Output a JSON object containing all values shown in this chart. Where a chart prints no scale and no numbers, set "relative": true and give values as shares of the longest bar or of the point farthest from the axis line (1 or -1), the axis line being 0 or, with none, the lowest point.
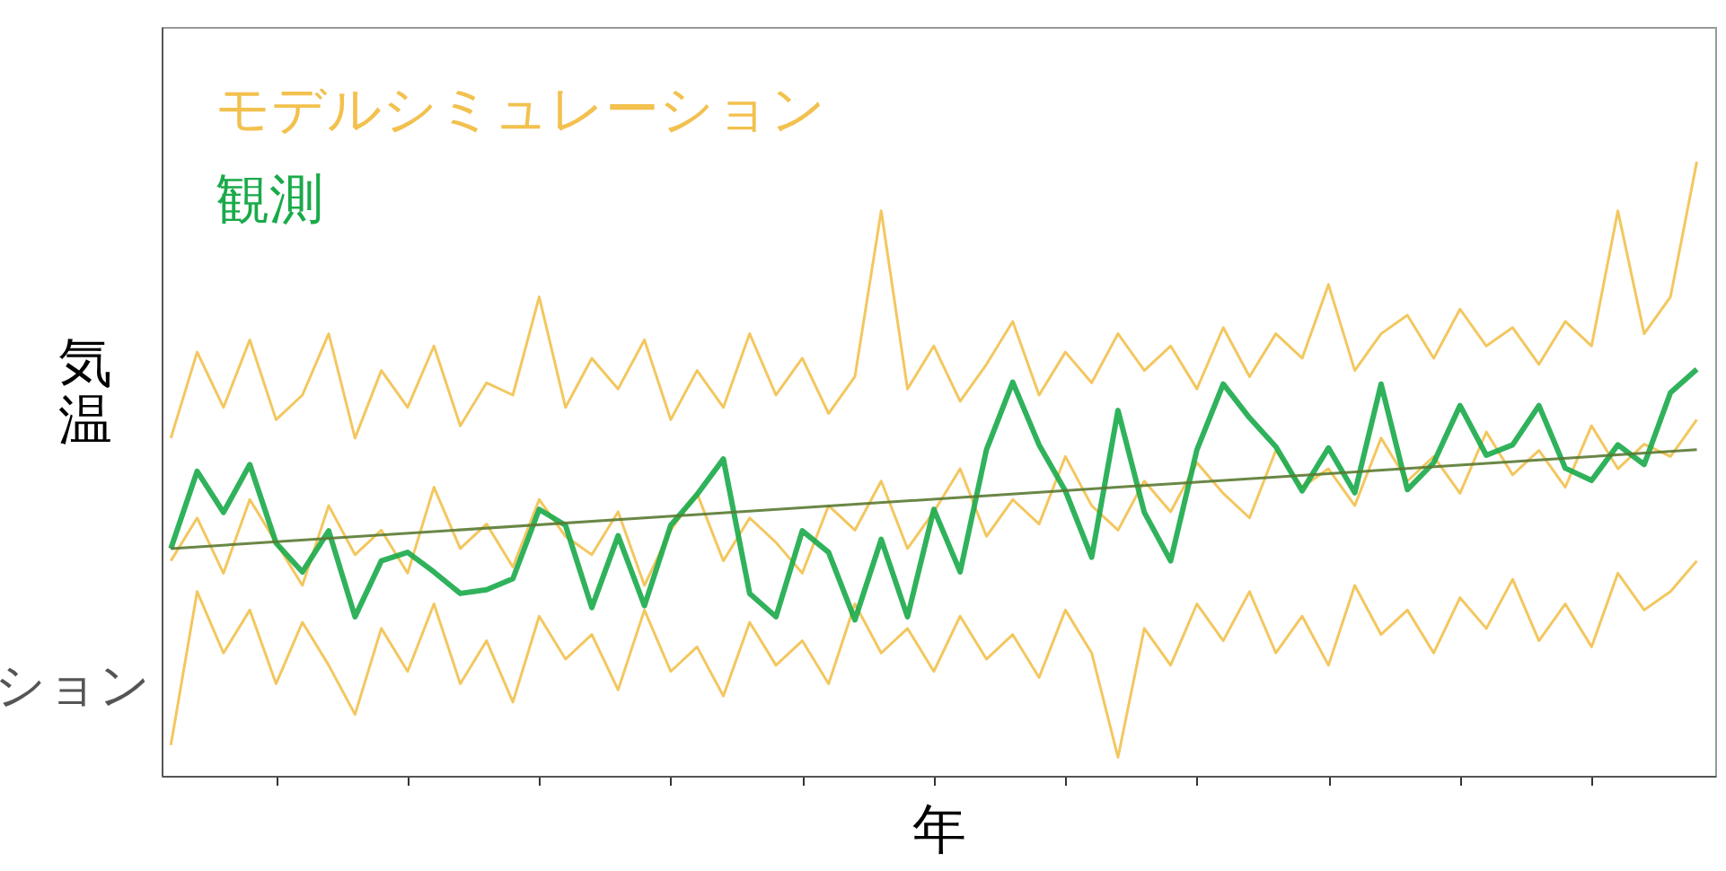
{
  "chart_data": {
    "type": "line",
    "relative": true,
    "xlabel": "年",
    "ylabel": "気温",
    "legend": "top left",
    "annotations": [
      "ション"
    ],
    "categories": [
      null,
      null,
      null,
      null,
      null,
      null,
      null,
      null,
      null,
      null,
      null,
      null,
      null,
      null,
      null,
      null,
      null,
      null,
      null,
      null,
      null,
      null,
      null,
      null,
      null,
      null,
      null,
      null,
      null,
      null,
      null,
      null,
      null,
      null,
      null,
      null,
      null,
      null,
      null,
      null,
      null,
      null,
      null,
      null,
      null,
      null,
      null,
      null,
      null,
      null,
      null,
      null,
      null,
      null,
      null,
      null,
      null,
      null,
      null
    ],
    "series": [
      {
        "name": "モデルシミュレーション",
        "color": "#f2c14e",
        "values": [
          0.55,
          0.69,
          0.6,
          0.71,
          0.58,
          0.62,
          0.72,
          0.55,
          0.66,
          0.6,
          0.7,
          0.57,
          0.64,
          0.62,
          0.78,
          0.6,
          0.68,
          0.63,
          0.71,
          0.58,
          0.66,
          0.6,
          0.72,
          0.62,
          0.68,
          0.59,
          0.65,
          0.92,
          0.63,
          0.7,
          0.61,
          0.67,
          0.74,
          0.62,
          0.69,
          0.64,
          0.72,
          0.66,
          0.7,
          0.63,
          0.73,
          0.65,
          0.72,
          0.68,
          0.8,
          0.66,
          0.72,
          0.75,
          0.68,
          0.76,
          0.7,
          0.73,
          0.67,
          0.74,
          0.7,
          0.92,
          0.72,
          0.78,
          1.0
        ]
      },
      {
        "color": "#f2c14e",
        "values": [
          0.05,
          0.3,
          0.2,
          0.27,
          0.15,
          0.25,
          0.18,
          0.1,
          0.24,
          0.17,
          0.28,
          0.15,
          0.22,
          0.12,
          0.26,
          0.19,
          0.23,
          0.14,
          0.27,
          0.17,
          0.21,
          0.13,
          0.25,
          0.18,
          0.22,
          0.15,
          0.28,
          0.2,
          0.24,
          0.17,
          0.26,
          0.19,
          0.23,
          0.16,
          0.27,
          0.2,
          0.03,
          0.24,
          0.18,
          0.28,
          0.22,
          0.3,
          0.2,
          0.26,
          0.18,
          0.31,
          0.23,
          0.27,
          0.2,
          0.29,
          0.24,
          0.32,
          0.22,
          0.28,
          0.21,
          0.33,
          0.27,
          0.3,
          0.35
        ]
      },
      {
        "color": "#f2c14e",
        "values": [
          0.35,
          0.42,
          0.33,
          0.45,
          0.38,
          0.31,
          0.44,
          0.36,
          0.4,
          0.33,
          0.47,
          0.37,
          0.41,
          0.34,
          0.45,
          0.39,
          0.36,
          0.43,
          0.31,
          0.4,
          0.46,
          0.35,
          0.42,
          0.38,
          0.33,
          0.44,
          0.4,
          0.48,
          0.37,
          0.43,
          0.5,
          0.39,
          0.45,
          0.41,
          0.52,
          0.44,
          0.4,
          0.48,
          0.43,
          0.51,
          0.46,
          0.42,
          0.53,
          0.47,
          0.5,
          0.44,
          0.55,
          0.48,
          0.52,
          0.46,
          0.56,
          0.49,
          0.53,
          0.47,
          0.57,
          0.5,
          0.54,
          0.52,
          0.58
        ]
      },
      {
        "name": "観測",
        "color": "#1aaa4a",
        "values": [
          0.37,
          0.496,
          0.429,
          0.507,
          0.379,
          0.332,
          0.399,
          0.259,
          0.35,
          0.364,
          0.332,
          0.297,
          0.303,
          0.321,
          0.434,
          0.408,
          0.274,
          0.391,
          0.277,
          0.408,
          0.458,
          0.516,
          0.297,
          0.259,
          0.399,
          0.364,
          0.254,
          0.385,
          0.259,
          0.434,
          0.332,
          0.531,
          0.641,
          0.539,
          0.464,
          0.356,
          0.595,
          0.429,
          0.35,
          0.531,
          0.638,
          0.583,
          0.536,
          0.464,
          0.534,
          0.461,
          0.638,
          0.466,
          0.51,
          0.603,
          0.522,
          0.539,
          0.603,
          0.501,
          0.481,
          0.539,
          0.507,
          0.624,
          0.662
        ]
      },
      {
        "color": "#5a7a32",
        "values": [
          0.37,
          null,
          null,
          null,
          null,
          null,
          null,
          null,
          null,
          null,
          null,
          null,
          null,
          null,
          null,
          null,
          null,
          null,
          null,
          null,
          null,
          null,
          null,
          null,
          null,
          null,
          null,
          null,
          null,
          null,
          null,
          null,
          null,
          null,
          null,
          null,
          null,
          null,
          null,
          null,
          null,
          null,
          null,
          null,
          null,
          null,
          null,
          null,
          null,
          null,
          null,
          null,
          null,
          null,
          null,
          null,
          null,
          null,
          0.531
        ]
      }
    ]
  }
}
